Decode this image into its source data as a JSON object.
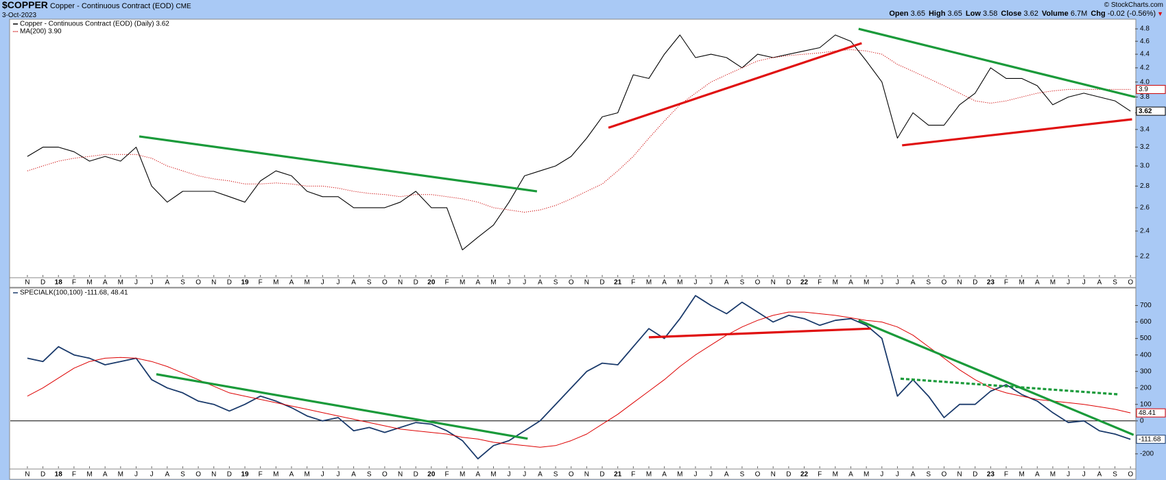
{
  "header": {
    "symbol": "$COPPER",
    "name": "Copper - Continuous Contract (EOD)",
    "exchange": "CME",
    "date": "3-Oct-2023",
    "credit": "© StockCharts.com",
    "quote": [
      {
        "label": "Open",
        "value": 3.65
      },
      {
        "label": "High",
        "value": 3.65
      },
      {
        "label": "Low",
        "value": 3.58
      },
      {
        "label": "Close",
        "value": 3.62
      },
      {
        "label": "Volume",
        "value": "6.7M"
      },
      {
        "label": "Chg",
        "value": "-0.02 (-0.56%)"
      }
    ]
  },
  "chart_data": [
    {
      "type": "line",
      "log": true,
      "grid": false,
      "categories": [
        "N",
        "D",
        "18",
        "F",
        "M",
        "A",
        "M",
        "J",
        "J",
        "A",
        "S",
        "O",
        "N",
        "D",
        "19",
        "F",
        "M",
        "A",
        "M",
        "J",
        "J",
        "A",
        "S",
        "O",
        "N",
        "D",
        "20",
        "F",
        "M",
        "A",
        "M",
        "J",
        "J",
        "A",
        "S",
        "O",
        "N",
        "D",
        "21",
        "F",
        "M",
        "A",
        "M",
        "J",
        "J",
        "A",
        "S",
        "O",
        "N",
        "D",
        "22",
        "F",
        "M",
        "A",
        "M",
        "J",
        "J",
        "A",
        "S",
        "O",
        "N",
        "D",
        "23",
        "F",
        "M",
        "A",
        "M",
        "J",
        "J",
        "A",
        "S",
        "O"
      ],
      "xlim": [
        -1.1,
        71.3
      ],
      "ylim": [
        2.05,
        4.95
      ],
      "yticks": [
        2.2,
        2.4,
        2.6,
        2.8,
        {
          "value": 3,
          "label": "3.0"
        },
        3.2,
        3.4,
        3.6,
        3.8,
        {
          "value": 4,
          "label": "4.0"
        },
        4.2,
        4.4,
        4.6,
        4.8
      ],
      "series": [
        {
          "name": "Copper - Continuous Contract (EOD) (Daily) 3.62",
          "color": "#000000",
          "style": "solid",
          "values": [
            3.1,
            3.2,
            3.2,
            3.15,
            3.05,
            3.1,
            3.05,
            3.2,
            2.8,
            2.65,
            2.75,
            2.75,
            2.75,
            2.7,
            2.65,
            2.85,
            2.95,
            2.9,
            2.75,
            2.7,
            2.7,
            2.6,
            2.6,
            2.6,
            2.65,
            2.75,
            2.6,
            2.6,
            2.25,
            2.35,
            2.45,
            2.65,
            2.9,
            2.95,
            3.0,
            3.1,
            3.3,
            3.55,
            3.6,
            4.1,
            4.05,
            4.4,
            4.7,
            4.35,
            4.4,
            4.35,
            4.2,
            4.4,
            4.35,
            4.4,
            4.45,
            4.5,
            4.7,
            4.6,
            4.3,
            4.0,
            3.3,
            3.6,
            3.45,
            3.45,
            3.7,
            3.85,
            4.2,
            4.05,
            4.05,
            3.95,
            3.7,
            3.8,
            3.85,
            3.8,
            3.75,
            3.62
          ]
        },
        {
          "name": "MA(200) 3.90",
          "color": "#cc0000",
          "style": "dotted",
          "values": [
            2.95,
            3.0,
            3.05,
            3.08,
            3.1,
            3.12,
            3.12,
            3.12,
            3.08,
            3.0,
            2.95,
            2.9,
            2.87,
            2.85,
            2.82,
            2.82,
            2.83,
            2.82,
            2.8,
            2.8,
            2.78,
            2.75,
            2.73,
            2.72,
            2.7,
            2.72,
            2.72,
            2.7,
            2.68,
            2.65,
            2.6,
            2.58,
            2.56,
            2.58,
            2.62,
            2.68,
            2.75,
            2.82,
            2.95,
            3.1,
            3.3,
            3.5,
            3.7,
            3.85,
            4.0,
            4.1,
            4.2,
            4.3,
            4.35,
            4.38,
            4.4,
            4.42,
            4.45,
            4.47,
            4.45,
            4.4,
            4.25,
            4.15,
            4.05,
            3.95,
            3.85,
            3.75,
            3.72,
            3.75,
            3.8,
            3.85,
            3.88,
            3.9,
            3.9,
            3.9,
            3.9,
            3.9
          ]
        }
      ],
      "trendlines": [
        {
          "color": "#1a9a3a",
          "x": [
            7.2,
            32.8
          ],
          "y": [
            3.32,
            2.75
          ]
        },
        {
          "color": "#e01010",
          "x": [
            37.4,
            53.7
          ],
          "y": [
            3.42,
            4.57
          ]
        },
        {
          "color": "#1a9a3a",
          "x": [
            53.5,
            71.3
          ],
          "y": [
            4.8,
            3.8
          ]
        },
        {
          "color": "#e01010",
          "x": [
            56.3,
            71.1
          ],
          "y": [
            3.22,
            3.52
          ]
        }
      ]
    },
    {
      "type": "line",
      "log": false,
      "grid": false,
      "zero_line": true,
      "categories": [
        "N",
        "D",
        "18",
        "F",
        "M",
        "A",
        "M",
        "J",
        "J",
        "A",
        "S",
        "O",
        "N",
        "D",
        "19",
        "F",
        "M",
        "A",
        "M",
        "J",
        "J",
        "A",
        "S",
        "O",
        "N",
        "D",
        "20",
        "F",
        "M",
        "A",
        "M",
        "J",
        "J",
        "A",
        "S",
        "O",
        "N",
        "D",
        "21",
        "F",
        "M",
        "A",
        "M",
        "J",
        "J",
        "A",
        "S",
        "O",
        "N",
        "D",
        "22",
        "F",
        "M",
        "A",
        "M",
        "J",
        "J",
        "A",
        "S",
        "O",
        "N",
        "D",
        "23",
        "F",
        "M",
        "A",
        "M",
        "J",
        "J",
        "A",
        "S",
        "O"
      ],
      "xlim": [
        -1.1,
        71.3
      ],
      "ylim": [
        -288,
        802
      ],
      "yticks": [
        -200,
        0,
        100,
        200,
        300,
        400,
        500,
        600,
        700
      ],
      "series": [
        {
          "name": "SPECIALK(100,100) -111.68, 48.41",
          "color": "#1a3a6b",
          "style": "solid",
          "values": [
            380,
            360,
            450,
            400,
            380,
            340,
            360,
            380,
            250,
            200,
            170,
            120,
            100,
            60,
            100,
            150,
            120,
            80,
            30,
            0,
            20,
            -60,
            -40,
            -70,
            -40,
            -10,
            -20,
            -60,
            -120,
            -230,
            -150,
            -120,
            -60,
            0,
            100,
            200,
            300,
            350,
            340,
            450,
            560,
            500,
            620,
            760,
            700,
            650,
            720,
            660,
            600,
            640,
            620,
            580,
            610,
            620,
            580,
            500,
            150,
            250,
            150,
            20,
            100,
            100,
            180,
            220,
            160,
            120,
            50,
            -10,
            0,
            -60,
            -80,
            -111.68
          ]
        },
        {
          "color": "#dd0000",
          "style": "thin",
          "values": [
            150,
            200,
            260,
            320,
            360,
            380,
            385,
            380,
            360,
            330,
            290,
            250,
            210,
            170,
            150,
            130,
            110,
            90,
            70,
            50,
            30,
            10,
            -10,
            -30,
            -50,
            -60,
            -70,
            -80,
            -100,
            -110,
            -130,
            -140,
            -150,
            -160,
            -150,
            -120,
            -80,
            -20,
            40,
            110,
            180,
            250,
            330,
            400,
            460,
            520,
            570,
            610,
            640,
            660,
            660,
            650,
            640,
            625,
            610,
            600,
            570,
            520,
            450,
            380,
            310,
            250,
            200,
            170,
            150,
            130,
            120,
            110,
            100,
            85,
            70,
            48.41
          ]
        }
      ],
      "trendlines": [
        {
          "color": "#1a9a3a",
          "x": [
            8.3,
            32.2
          ],
          "y": [
            283,
            -108
          ]
        },
        {
          "color": "#e01010",
          "x": [
            40,
            54.3
          ],
          "y": [
            507,
            560
          ]
        },
        {
          "color": "#1a9a3a",
          "x": [
            53.5,
            71.2
          ],
          "y": [
            610,
            -85
          ]
        },
        {
          "color": "#1a9a3a",
          "x": [
            56.2,
            70.2
          ],
          "y": [
            256,
            161
          ],
          "dash": true
        }
      ]
    }
  ]
}
